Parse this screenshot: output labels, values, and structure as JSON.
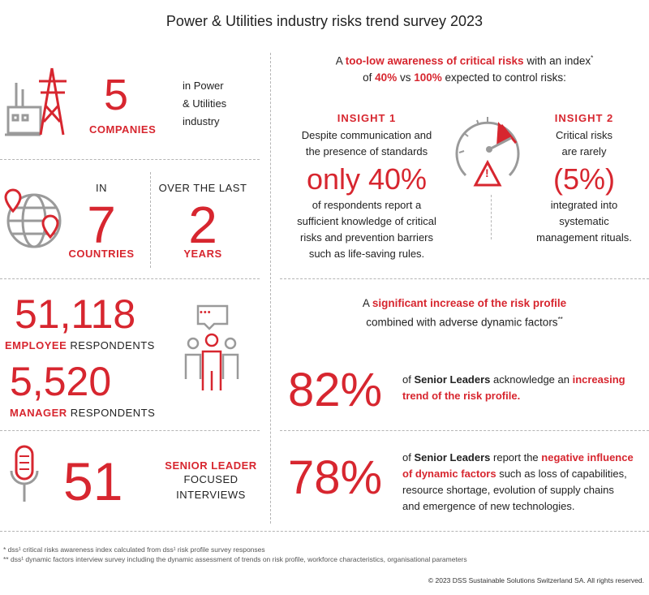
{
  "title": "Power & Utilities industry risks trend survey 2023",
  "left": {
    "companies": {
      "value": "5",
      "label": "COMPANIES",
      "desc_line1": "in Power",
      "desc_line2": "& Utilities",
      "desc_line3": "industry"
    },
    "countries": {
      "prefix": "IN",
      "value": "7",
      "label": "COUNTRIES"
    },
    "years": {
      "prefix": "OVER THE LAST",
      "value": "2",
      "label": "YEARS"
    },
    "employees": {
      "value": "51,118",
      "label_red": "EMPLOYEE",
      "label": "RESPONDENTS"
    },
    "managers": {
      "value": "5,520",
      "label_red": "MANAGER",
      "label": "RESPONDENTS"
    },
    "leaders": {
      "value": "51",
      "label_red": "SENIOR LEADER",
      "label_line2": "FOCUSED",
      "label_line3": "INTERVIEWS"
    }
  },
  "right": {
    "awareness": {
      "line1_pre": "A ",
      "line1_red": "too-low awareness of critical risks",
      "line1_post": " with an index",
      "line1_sup": "*",
      "line2_pre": "of ",
      "line2_red1": "40%",
      "line2_mid": " vs ",
      "line2_red2": "100%",
      "line2_post": " expected to control risks:"
    },
    "insight1": {
      "heading": "INSIGHT 1",
      "line1": "Despite communication and",
      "line2": "the presence of standards",
      "big": "only 40%",
      "line3": "of respondents report a",
      "line4": "sufficient knowledge of critical",
      "line5": "risks and prevention barriers",
      "line6": "such as life-saving rules."
    },
    "insight2": {
      "heading": "INSIGHT 2",
      "line1": "Critical risks",
      "line2": "are rarely",
      "big": "(5%)",
      "line3": "integrated into",
      "line4": "systematic",
      "line5": "management rituals."
    },
    "increase": {
      "line1_pre": "A ",
      "line1_red": "significant increase of the risk profile",
      "line2": "combined with adverse dynamic factors",
      "line2_sup": "**"
    },
    "stat82": {
      "value": "82%",
      "pre": "of ",
      "bold": "Senior Leaders",
      "mid": " acknowledge an ",
      "red1": "increasing",
      "red2": "trend of the risk profile."
    },
    "stat78": {
      "value": "78%",
      "pre": "of ",
      "bold": "Senior Leaders",
      "mid": " report the ",
      "red1": "negative influence",
      "red2": "of dynamic factors",
      "post1": " such as loss of capabilities,",
      "line3": "resource shortage, evolution of supply chains",
      "line4": "and emergence of new technologies."
    }
  },
  "footnotes": {
    "note1": "*   dss¹ critical risks awareness index calculated from dss¹ risk profile survey responses",
    "note2": "**  dss¹ dynamic factors interview survey including the dynamic assessment of trends on risk profile, workforce characteristics, organisational parameters",
    "copyright": "© 2023 DSS Sustainable Solutions Switzerland SA.  All rights reserved."
  },
  "gauge_icon": {
    "exclamation": "!"
  },
  "speech_icon": {
    "dots": "•••"
  },
  "colors": {
    "accent": "#d7262f",
    "icon_grey": "#9a9a9a"
  },
  "icons": [
    "power-plant-icon",
    "globe-pin-icon",
    "people-group-icon",
    "microphone-icon",
    "gauge-warning-icon"
  ]
}
